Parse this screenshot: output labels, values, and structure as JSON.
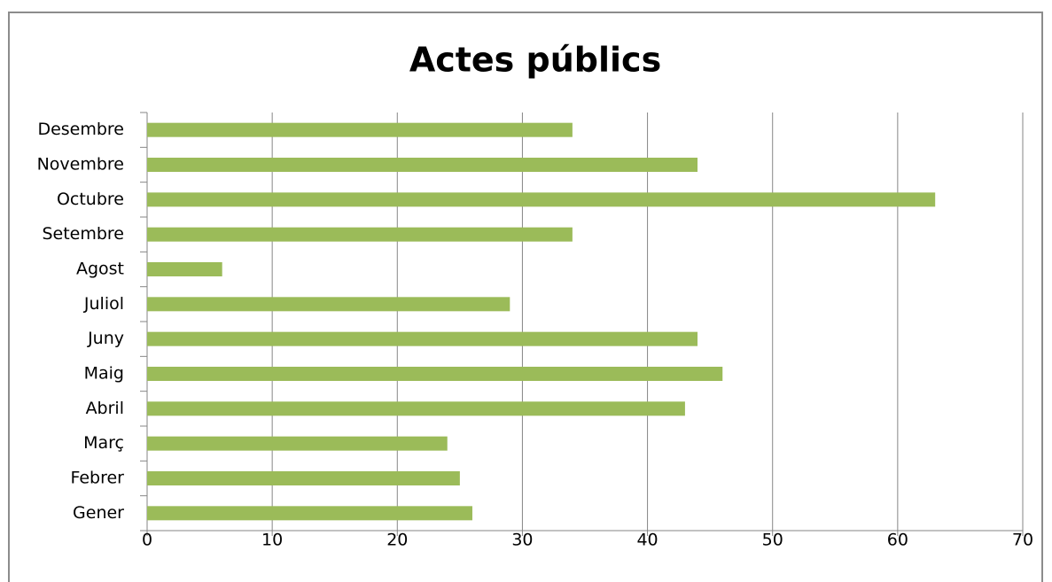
{
  "chart_data": {
    "type": "bar",
    "orientation": "horizontal",
    "title": "Actes públics",
    "categories": [
      "Gener",
      "Febrer",
      "Març",
      "Abril",
      "Maig",
      "Juny",
      "Juliol",
      "Agost",
      "Setembre",
      "Octubre",
      "Novembre",
      "Desembre"
    ],
    "values": [
      26,
      25,
      24,
      43,
      46,
      44,
      29,
      6,
      34,
      63,
      44,
      34
    ],
    "color": "#9bbb59",
    "xlim": [
      0,
      70
    ],
    "xticks": [
      0,
      10,
      20,
      30,
      40,
      50,
      60,
      70
    ],
    "grid": true
  }
}
